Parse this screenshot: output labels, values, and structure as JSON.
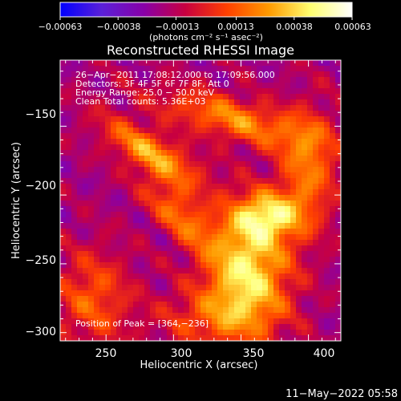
{
  "chart_data": {
    "type": "heatmap",
    "title": "Reconstructed RHESSI Image",
    "xlabel": "Heliocentric X (arcsec)",
    "ylabel": "Heliocentric Y (arcsec)",
    "xlim": [
      216,
      424
    ],
    "ylim": [
      -306,
      -102
    ],
    "x_ticks": [
      250,
      300,
      350,
      400
    ],
    "y_ticks": [
      -150,
      -200,
      -250,
      -300
    ],
    "x_tick_labels": [
      "250",
      "300",
      "350",
      "400"
    ],
    "y_tick_labels": [
      "−150",
      "−200",
      "−250",
      "−300"
    ],
    "colorbar": {
      "min": -0.00063,
      "max": 0.00063,
      "ticks": [
        -0.00063,
        -0.00038,
        -0.00013,
        0.00013,
        0.00038,
        0.00063
      ],
      "tick_labels": [
        "−0.00063",
        "−0.00038",
        "−0.00013",
        "0.00013",
        "0.00038",
        "0.00063"
      ],
      "units": "(photons cm⁻² s⁻¹ asec⁻²)",
      "colors": [
        "#0000ff",
        "#5a20d8",
        "#8800a8",
        "#c80040",
        "#ff4000",
        "#ff9a00",
        "#ffff70",
        "#ffffff"
      ]
    },
    "info_lines": [
      "26−Apr−2011 17:08:12.000 to 17:09:56.000",
      "Detectors: 3F 4F 5F 6F 7F 8F, Att 0",
      "Energy Range: 25.0 − 50.0 keV",
      "Clean     Total counts: 5.36E+03"
    ],
    "peak_label": "Position of Peak = [364,−236]",
    "peak": {
      "x": 364,
      "y": -236
    },
    "sources": [
      {
        "x": 285,
        "y": -170,
        "sx": 30,
        "sy": 10,
        "angle": -30,
        "amp": 0.00045
      },
      {
        "x": 345,
        "y": -145,
        "sx": 40,
        "sy": 11,
        "angle": -15,
        "amp": 0.0004
      },
      {
        "x": 305,
        "y": -215,
        "sx": 25,
        "sy": 10,
        "angle": -45,
        "amp": 0.00035
      },
      {
        "x": 355,
        "y": -255,
        "sx": 22,
        "sy": 30,
        "angle": 0,
        "amp": 0.0006
      },
      {
        "x": 370,
        "y": -215,
        "sx": 18,
        "sy": 12,
        "angle": 0,
        "amp": 0.0005
      },
      {
        "x": 400,
        "y": -180,
        "sx": 15,
        "sy": 30,
        "angle": 0,
        "amp": 0.00035
      },
      {
        "x": 240,
        "y": -275,
        "sx": 20,
        "sy": 25,
        "angle": 0,
        "amp": 0.0003
      },
      {
        "x": 330,
        "y": -290,
        "sx": 30,
        "sy": 15,
        "angle": 0,
        "amp": 0.00025
      }
    ]
  },
  "timestamp": "11−May−2022 05:58"
}
